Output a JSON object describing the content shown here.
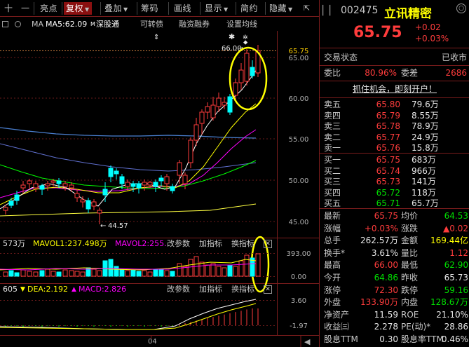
{
  "toolbar": {
    "items": [
      "十",
      "一",
      "亮点",
      "复权",
      "叠加",
      "筹码",
      "画线",
      "显示",
      "简约",
      "隐藏"
    ],
    "active": "复权"
  },
  "ma_bar": {
    "prefix": "MA",
    "ma5": "MA5:62.09",
    "sh": "深股通",
    "convert": "可转债",
    "margin": "融资融券",
    "setting": "设置均线"
  },
  "price_axis": [
    "65.75",
    "65.00",
    "60.00",
    "55.00",
    "50.00",
    "45.00"
  ],
  "annotations": {
    "high": "66.00",
    "low": "44.57"
  },
  "vol_bar": {
    "vol": "573万",
    "mavol1": "MAVOL1:237.498万",
    "mavol2": "MAVOL2:255.",
    "change": "改参数",
    "add": "加指标",
    "swap": "换指标"
  },
  "vol_axis": [
    "393.00",
    "0.00"
  ],
  "macd_bar": {
    "diff": "605",
    "dea": "DEA:2.192",
    "macd": "MACD:2.826",
    "change": "改参数",
    "add": "加指标",
    "swap": "换指标"
  },
  "macd_axis": [
    "3.60",
    "-1.97"
  ],
  "x_axis": {
    "label": "04"
  },
  "stock": {
    "code": "002475",
    "name": "立讯精密",
    "price": "65.75",
    "change": "+0.02",
    "change_pct": "+0.03%"
  },
  "status": {
    "label": "交易状态",
    "value": "已收市"
  },
  "ratio": {
    "wb_label": "委比",
    "wb_value": "80.96%",
    "wc_label": "委差",
    "wc_value": "2686"
  },
  "promo": "抓住机会，即刻开户！",
  "sell_orders": [
    {
      "label": "卖五",
      "price": "65.80",
      "vol": "79.6万"
    },
    {
      "label": "卖四",
      "price": "65.79",
      "vol": "8.55万"
    },
    {
      "label": "卖三",
      "price": "65.78",
      "vol": "78.9万"
    },
    {
      "label": "卖二",
      "price": "65.77",
      "vol": "24.9万"
    },
    {
      "label": "卖一",
      "price": "65.76",
      "vol": "15.8万"
    }
  ],
  "buy_orders": [
    {
      "label": "买一",
      "price": "65.75",
      "vol": "683万"
    },
    {
      "label": "买二",
      "price": "65.74",
      "vol": "966万"
    },
    {
      "label": "买三",
      "price": "65.73",
      "vol": "141万"
    },
    {
      "label": "买四",
      "price": "65.72",
      "vol": "118万"
    },
    {
      "label": "买五",
      "price": "65.71",
      "vol": "65.7万"
    }
  ],
  "stats": [
    {
      "l1": "最新",
      "v1": "65.75",
      "c1": "red",
      "l2": "均价",
      "v2": "64.53",
      "c2": "green"
    },
    {
      "l1": "涨幅",
      "v1": "+0.03%",
      "c1": "red",
      "l2": "涨跌",
      "v2": "▲0.02",
      "c2": "red"
    },
    {
      "l1": "总手",
      "v1": "262.57万",
      "c1": "white",
      "l2": "金额",
      "v2": "169.44亿",
      "c2": "yellow"
    },
    {
      "l1": "换手*",
      "v1": "3.61%",
      "c1": "white",
      "l2": "量比",
      "v2": "1.12",
      "c2": "red"
    },
    {
      "l1": "最高",
      "v1": "66.00",
      "c1": "red",
      "l2": "最低",
      "v2": "62.90",
      "c2": "green"
    },
    {
      "l1": "今开",
      "v1": "64.86",
      "c1": "green",
      "l2": "昨收",
      "v2": "65.73",
      "c2": "white"
    },
    {
      "l1": "涨停",
      "v1": "72.30",
      "c1": "red",
      "l2": "跌停",
      "v2": "59.16",
      "c2": "green"
    },
    {
      "l1": "外盘",
      "v1": "133.90万",
      "c1": "red",
      "l2": "内盘",
      "v2": "128.67万",
      "c2": "green"
    },
    {
      "l1": "净资产",
      "v1": "11.59",
      "c1": "white",
      "l2": "ROE",
      "v2": "21.10%",
      "c2": "white"
    },
    {
      "l1": "收益㈢",
      "v1": "2.278",
      "c1": "white",
      "l2": "PE(动)*",
      "v2": "28.86",
      "c2": "white"
    },
    {
      "l1": "股息TTM",
      "v1": "0.30",
      "c1": "white",
      "l2": "股息率TTM",
      "v2": "0.46%",
      "c2": "white"
    }
  ],
  "colors": {
    "up": "#ff3c3c",
    "down": "#00ffff",
    "ma5": "#ffffff",
    "ma10": "#ffff00",
    "ma20": "#ff00ff",
    "ma60": "#00ff00",
    "ma120": "#4a7fd0",
    "ma250": "#ffff40",
    "highlight": "#ffff00"
  }
}
